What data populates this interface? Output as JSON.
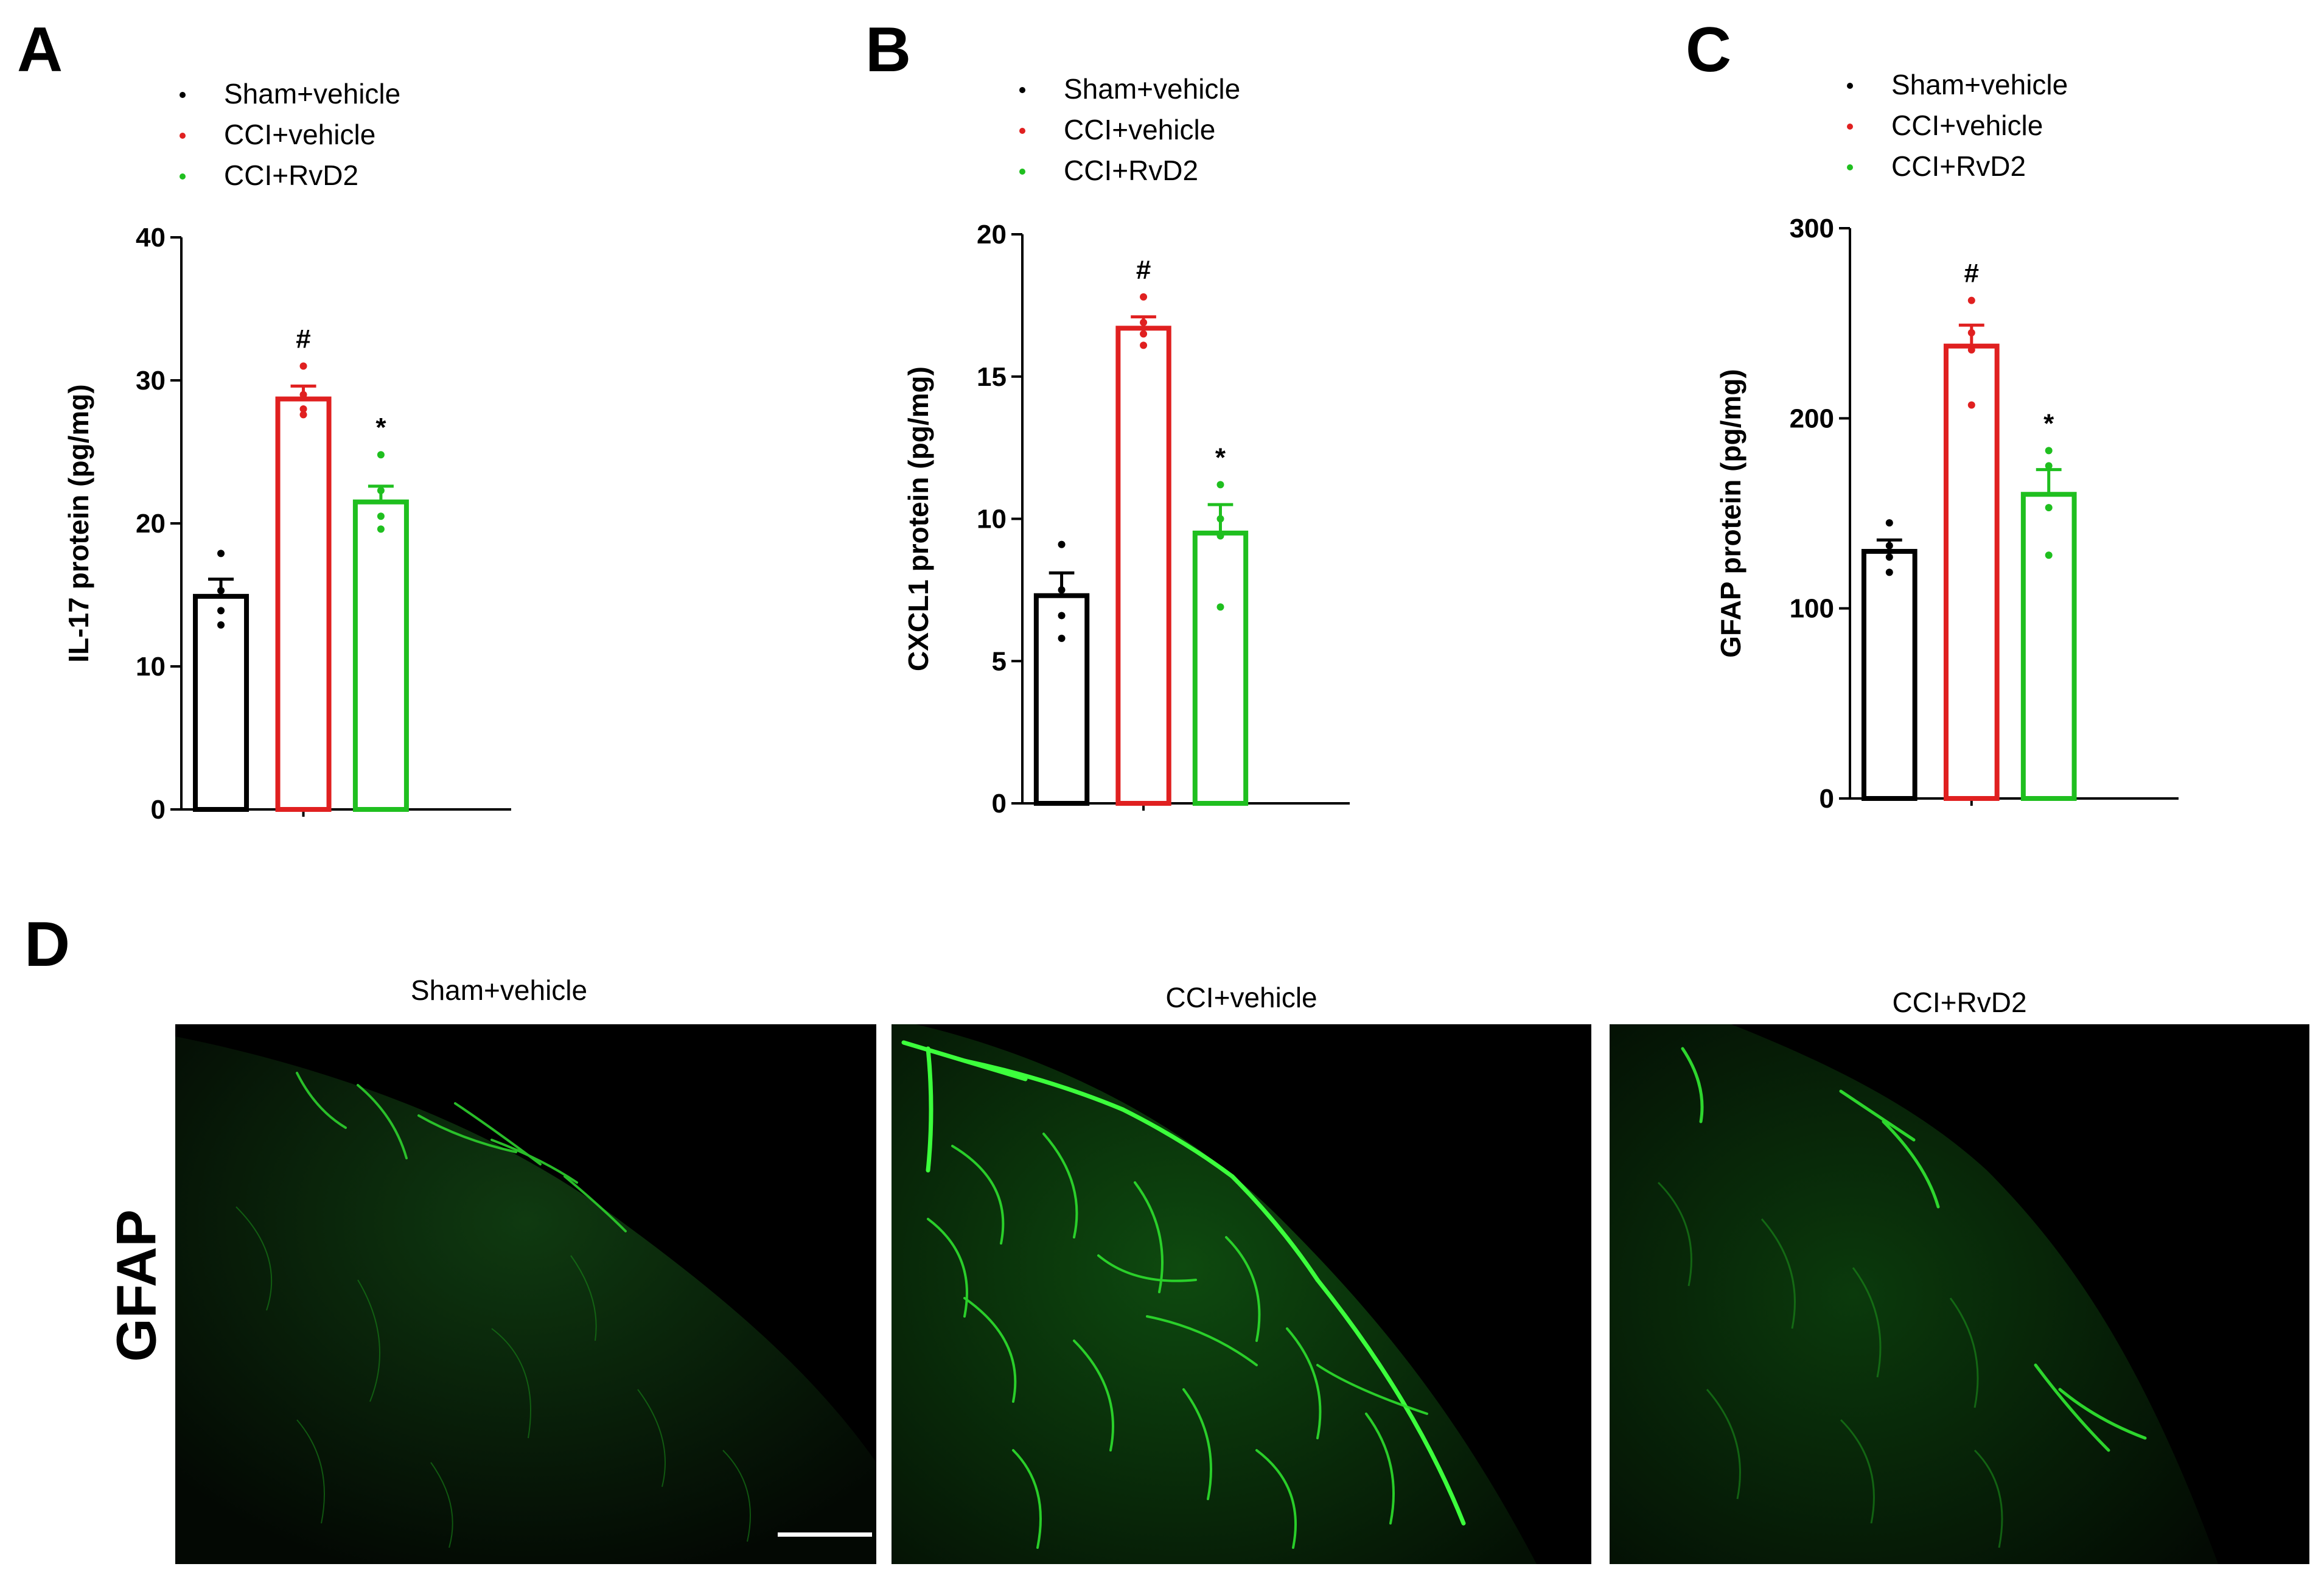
{
  "panel_letters": {
    "a": "A",
    "b": "B",
    "c": "C",
    "d": "D"
  },
  "colors": {
    "sham": "#000000",
    "cci_vehicle": "#e02020",
    "cci_rvd2": "#1fbf1f",
    "stain": "#22dd22"
  },
  "chart_data": [
    {
      "type": "bar",
      "categories": [
        "Sham+vehicle",
        "CCI+vehicle",
        "CCI+RvD2"
      ],
      "ylabel": "IL-17 protein (pg/mg)",
      "ylim": [
        0,
        40
      ],
      "yticks": [
        "0",
        "10",
        "20",
        "30",
        "40"
      ],
      "legend": [
        "Sham+vehicle",
        "CCI+vehicle",
        "CCI+RvD2"
      ],
      "legend_position": "top",
      "values": [
        14.9,
        28.7,
        21.5
      ],
      "sem": [
        1.2,
        0.9,
        1.1
      ],
      "points": [
        [
          17.9,
          15.3,
          13.9,
          12.9
        ],
        [
          31.0,
          29.0,
          28.0,
          27.6
        ],
        [
          24.8,
          22.3,
          20.5,
          19.6
        ]
      ],
      "annotations": [
        "",
        "#",
        "*"
      ]
    },
    {
      "type": "bar",
      "categories": [
        "Sham+vehicle",
        "CCI+vehicle",
        "CCI+RvD2"
      ],
      "ylabel": "CXCL1 protein (pg/mg)",
      "ylim": [
        0,
        20
      ],
      "yticks": [
        "0",
        "5",
        "10",
        "15",
        "20"
      ],
      "legend": [
        "Sham+vehicle",
        "CCI+vehicle",
        "CCI+RvD2"
      ],
      "legend_position": "top",
      "values": [
        7.3,
        16.7,
        9.5
      ],
      "sem": [
        0.8,
        0.4,
        1.0
      ],
      "points": [
        [
          9.1,
          7.5,
          6.6,
          5.8
        ],
        [
          17.8,
          16.9,
          16.5,
          16.1
        ],
        [
          11.2,
          10.0,
          9.4,
          6.9
        ]
      ],
      "annotations": [
        "",
        "#",
        "*"
      ]
    },
    {
      "type": "bar",
      "categories": [
        "Sham+vehicle",
        "CCI+vehicle",
        "CCI+RvD2"
      ],
      "ylabel": "GFAP protein (pg/mg)",
      "ylim": [
        0,
        300
      ],
      "yticks": [
        "0",
        "100",
        "200",
        "300"
      ],
      "legend": [
        "Sham+vehicle",
        "CCI+vehicle",
        "CCI+RvD2"
      ],
      "legend_position": "top",
      "values": [
        130,
        238,
        160
      ],
      "sem": [
        6,
        11,
        13
      ],
      "points": [
        [
          145,
          133,
          127,
          119
        ],
        [
          262,
          245,
          236,
          207
        ],
        [
          183,
          175,
          153,
          128
        ]
      ],
      "annotations": [
        "",
        "#",
        "*"
      ]
    }
  ],
  "micrographs": {
    "stain_label": "GFAP",
    "titles": [
      "Sham+vehicle",
      "CCI+vehicle",
      "CCI+RvD2"
    ],
    "signal_level": [
      "low",
      "high",
      "medium"
    ]
  }
}
